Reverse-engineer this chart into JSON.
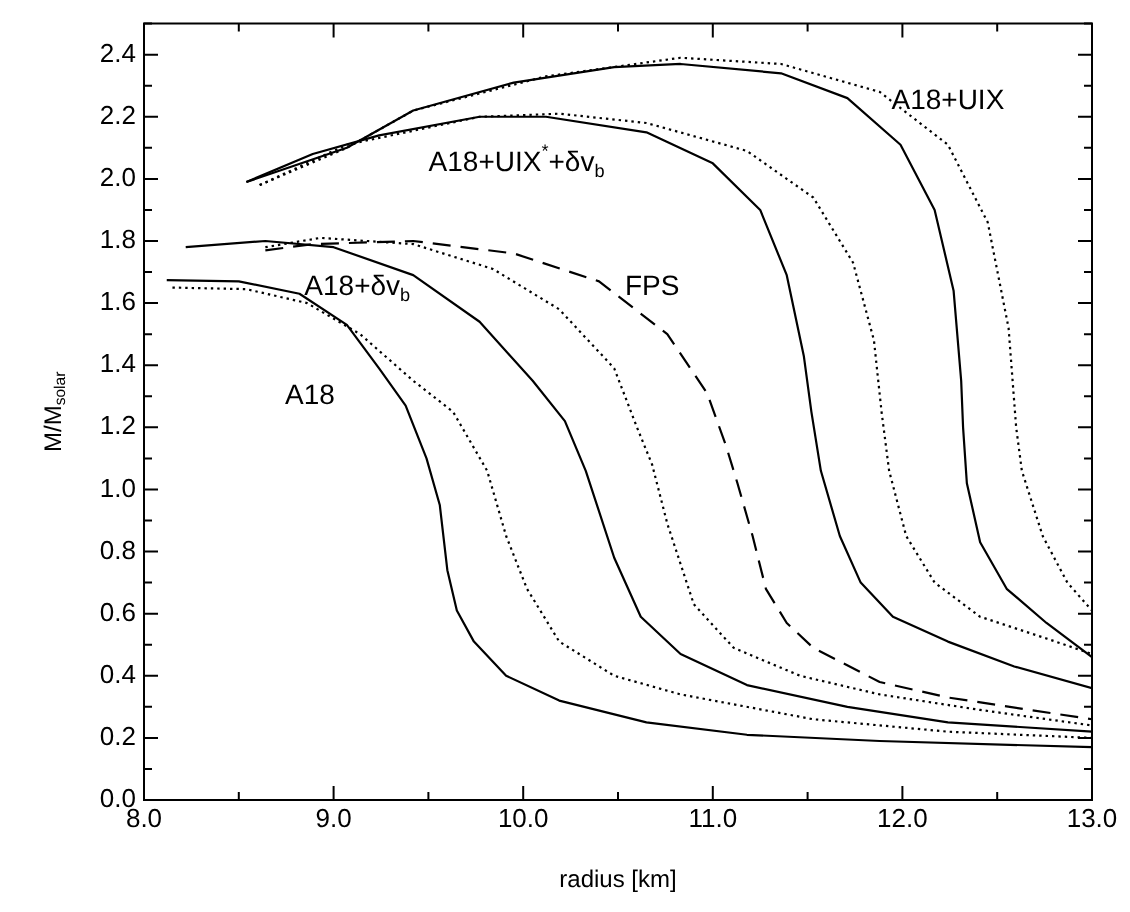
{
  "chart_data": {
    "type": "line",
    "xlabel": "radius [km]",
    "ylabel": "M/M$_{solar}$",
    "xlim": [
      8,
      13
    ],
    "ylim": [
      0,
      2.5
    ],
    "xticks": [
      {
        "value": 8,
        "label": "8.0"
      },
      {
        "value": 8.5,
        "label": null
      },
      {
        "value": 9,
        "label": "9.0"
      },
      {
        "value": 9.5,
        "label": null
      },
      {
        "value": 10,
        "label": "10.0"
      },
      {
        "value": 10.5,
        "label": null
      },
      {
        "value": 11,
        "label": "11.0"
      },
      {
        "value": 11.5,
        "label": null
      },
      {
        "value": 12,
        "label": "12.0"
      },
      {
        "value": 12.5,
        "label": null
      },
      {
        "value": 13,
        "label": "13.0"
      }
    ],
    "yticks": [
      {
        "value": 0,
        "label": "0.0"
      },
      {
        "value": 0.1,
        "label": null
      },
      {
        "value": 0.2,
        "label": "0.2"
      },
      {
        "value": 0.3,
        "label": null
      },
      {
        "value": 0.4,
        "label": "0.4"
      },
      {
        "value": 0.5,
        "label": null
      },
      {
        "value": 0.6,
        "label": "0.6"
      },
      {
        "value": 0.7,
        "label": null
      },
      {
        "value": 0.8,
        "label": "0.8"
      },
      {
        "value": 0.9,
        "label": null
      },
      {
        "value": 1.0,
        "label": "1.0"
      },
      {
        "value": 1.1,
        "label": null
      },
      {
        "value": 1.2,
        "label": "1.2"
      },
      {
        "value": 1.3,
        "label": null
      },
      {
        "value": 1.4,
        "label": "1.4"
      },
      {
        "value": 1.5,
        "label": null
      },
      {
        "value": 1.6,
        "label": "1.6"
      },
      {
        "value": 1.7,
        "label": null
      },
      {
        "value": 1.8,
        "label": "1.8"
      },
      {
        "value": 1.9,
        "label": null
      },
      {
        "value": 2.0,
        "label": "2.0"
      },
      {
        "value": 2.1,
        "label": null
      },
      {
        "value": 2.2,
        "label": "2.2"
      },
      {
        "value": 2.3,
        "label": null
      },
      {
        "value": 2.4,
        "label": "2.4"
      },
      {
        "value": 2.5,
        "label": null
      }
    ],
    "marker": "none",
    "series": [
      {
        "color": "#000000",
        "line_style": "solid",
        "x": [
          8.12,
          8.5,
          8.82,
          9.07,
          9.24,
          9.38,
          9.49,
          9.56,
          9.6,
          9.65,
          9.74,
          9.91,
          10.19,
          10.65,
          11.18,
          11.88,
          13.0
        ],
        "values": [
          1.674,
          1.67,
          1.63,
          1.53,
          1.39,
          1.27,
          1.1,
          0.95,
          0.74,
          0.61,
          0.51,
          0.4,
          0.32,
          0.25,
          0.21,
          0.19,
          0.17
        ]
      },
      {
        "color": "#000000",
        "line_style": "dotted",
        "x": [
          8.15,
          8.54,
          8.86,
          9.14,
          9.42,
          9.63,
          9.81,
          9.91,
          10.02,
          10.19,
          10.48,
          10.83,
          11.53,
          12.24,
          13.0
        ],
        "values": [
          1.65,
          1.645,
          1.6,
          1.5,
          1.35,
          1.25,
          1.06,
          0.85,
          0.68,
          0.51,
          0.4,
          0.34,
          0.26,
          0.22,
          0.2
        ]
      },
      {
        "color": "#000000",
        "line_style": "solid",
        "x": [
          8.22,
          8.64,
          9.0,
          9.42,
          9.77,
          10.05,
          10.22,
          10.33,
          10.48,
          10.62,
          10.83,
          11.18,
          11.71,
          12.24,
          13.0
        ],
        "values": [
          1.78,
          1.8,
          1.78,
          1.69,
          1.54,
          1.35,
          1.22,
          1.06,
          0.78,
          0.59,
          0.47,
          0.37,
          0.3,
          0.25,
          0.22
        ]
      },
      {
        "color": "#000000",
        "line_style": "dotted",
        "x": [
          8.64,
          8.93,
          9.42,
          9.84,
          10.19,
          10.48,
          10.6,
          10.68,
          10.76,
          10.9,
          11.11,
          11.46,
          11.88,
          12.41,
          13.0
        ],
        "values": [
          1.78,
          1.81,
          1.79,
          1.71,
          1.58,
          1.39,
          1.2,
          1.08,
          0.89,
          0.63,
          0.49,
          0.4,
          0.34,
          0.29,
          0.24
        ]
      },
      {
        "color": "#000000",
        "line_style": "dashed",
        "x": [
          8.64,
          8.89,
          9.42,
          9.95,
          10.4,
          10.76,
          10.97,
          11.07,
          11.13,
          11.21,
          11.28,
          11.39,
          11.53,
          11.88,
          12.24,
          13.0
        ],
        "values": [
          1.77,
          1.79,
          1.8,
          1.76,
          1.67,
          1.5,
          1.31,
          1.14,
          1.02,
          0.85,
          0.68,
          0.57,
          0.49,
          0.38,
          0.33,
          0.26
        ]
      },
      {
        "color": "#000000",
        "line_style": "solid",
        "x": [
          8.54,
          8.89,
          9.24,
          9.77,
          10.12,
          10.65,
          11.0,
          11.25,
          11.39,
          11.48,
          11.52,
          11.57,
          11.67,
          11.78,
          11.95,
          12.24,
          12.59,
          13.0
        ],
        "values": [
          1.99,
          2.08,
          2.14,
          2.2,
          2.2,
          2.15,
          2.05,
          1.9,
          1.69,
          1.43,
          1.25,
          1.06,
          0.85,
          0.7,
          0.59,
          0.51,
          0.43,
          0.36
        ]
      },
      {
        "color": "#000000",
        "line_style": "dotted",
        "x": [
          8.61,
          9.07,
          9.77,
          10.19,
          10.65,
          11.18,
          11.53,
          11.74,
          11.85,
          11.89,
          11.93,
          12.02,
          12.17,
          12.41,
          12.76,
          13.0
        ],
        "values": [
          1.98,
          2.11,
          2.2,
          2.21,
          2.18,
          2.09,
          1.94,
          1.73,
          1.48,
          1.25,
          1.06,
          0.85,
          0.7,
          0.59,
          0.52,
          0.47
        ]
      },
      {
        "color": "#000000",
        "line_style": "solid",
        "x": [
          8.54,
          9.07,
          9.42,
          9.95,
          10.48,
          10.83,
          11.36,
          11.71,
          11.99,
          12.17,
          12.27,
          12.31,
          12.32,
          12.34,
          12.41,
          12.55,
          12.76,
          13.0
        ],
        "values": [
          1.99,
          2.1,
          2.22,
          2.31,
          2.36,
          2.37,
          2.34,
          2.26,
          2.11,
          1.9,
          1.64,
          1.35,
          1.2,
          1.02,
          0.83,
          0.68,
          0.57,
          0.46
        ]
      },
      {
        "color": "#000000",
        "line_style": "dotted",
        "x": [
          8.61,
          9.07,
          9.42,
          10.12,
          10.83,
          11.36,
          11.88,
          12.24,
          12.45,
          12.56,
          12.6,
          12.63,
          12.74,
          12.87,
          13.0
        ],
        "values": [
          1.98,
          2.1,
          2.22,
          2.33,
          2.39,
          2.37,
          2.28,
          2.11,
          1.86,
          1.52,
          1.2,
          1.06,
          0.85,
          0.7,
          0.61
        ]
      }
    ],
    "annotations": [
      "A18+UIX",
      "A18+UIX$^{*}$+δv$_{b}$",
      "A18+δv$_{b}$",
      "FPS",
      "A18"
    ]
  }
}
